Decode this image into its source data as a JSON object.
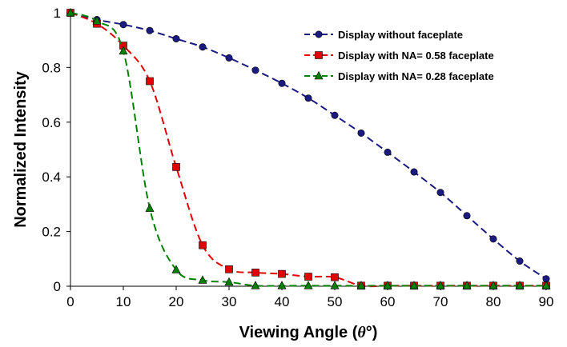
{
  "chart_data": {
    "type": "line",
    "xlabel": "Viewing Angle (θ°)",
    "xlabel_prefix": "Viewing Angle (",
    "xlabel_symbol": "θ",
    "xlabel_suffix": "°)",
    "ylabel": "Normalized Intensity",
    "xlim": [
      0,
      90
    ],
    "ylim": [
      0,
      1
    ],
    "xticks": [
      0,
      10,
      20,
      30,
      40,
      50,
      60,
      70,
      80,
      90
    ],
    "yticks": [
      0,
      0.2,
      0.4,
      0.6,
      0.8,
      1
    ],
    "ytick_labels": [
      "0",
      "0.2",
      "0.4",
      "0.6",
      "0.8",
      "1"
    ],
    "grid": false,
    "legend_position": "top-right",
    "series": [
      {
        "name": "Display without faceplate",
        "color": "#1a1a80",
        "marker": "circle",
        "x": [
          0,
          5,
          10,
          15,
          20,
          25,
          30,
          35,
          40,
          45,
          50,
          55,
          60,
          65,
          70,
          75,
          80,
          85,
          90
        ],
        "y": [
          1.0,
          0.975,
          0.957,
          0.935,
          0.905,
          0.875,
          0.835,
          0.79,
          0.742,
          0.688,
          0.625,
          0.56,
          0.49,
          0.418,
          0.343,
          0.258,
          0.173,
          0.092,
          0.027
        ]
      },
      {
        "name": "Display with NA= 0.58 faceplate",
        "color": "#e00000",
        "marker": "square",
        "x": [
          0,
          5,
          10,
          15,
          20,
          25,
          30,
          35,
          40,
          45,
          50,
          55,
          60,
          65,
          70,
          75,
          80,
          85,
          90
        ],
        "y": [
          1.0,
          0.96,
          0.88,
          0.75,
          0.436,
          0.15,
          0.062,
          0.05,
          0.045,
          0.035,
          0.033,
          0.002,
          0.002,
          0.002,
          0.002,
          0.002,
          0.002,
          0.002,
          0.002
        ]
      },
      {
        "name": "Display with NA= 0.28 faceplate",
        "color": "#008000",
        "marker": "triangle",
        "x": [
          0,
          5,
          10,
          15,
          20,
          25,
          30,
          35,
          40,
          45,
          50,
          55,
          60,
          65,
          70,
          75,
          80,
          85,
          90
        ],
        "y": [
          1.0,
          0.97,
          0.86,
          0.285,
          0.06,
          0.022,
          0.015,
          0.002,
          0.002,
          0.002,
          0.002,
          0.002,
          0.002,
          0.002,
          0.002,
          0.002,
          0.002,
          0.002,
          0.002
        ]
      }
    ]
  }
}
